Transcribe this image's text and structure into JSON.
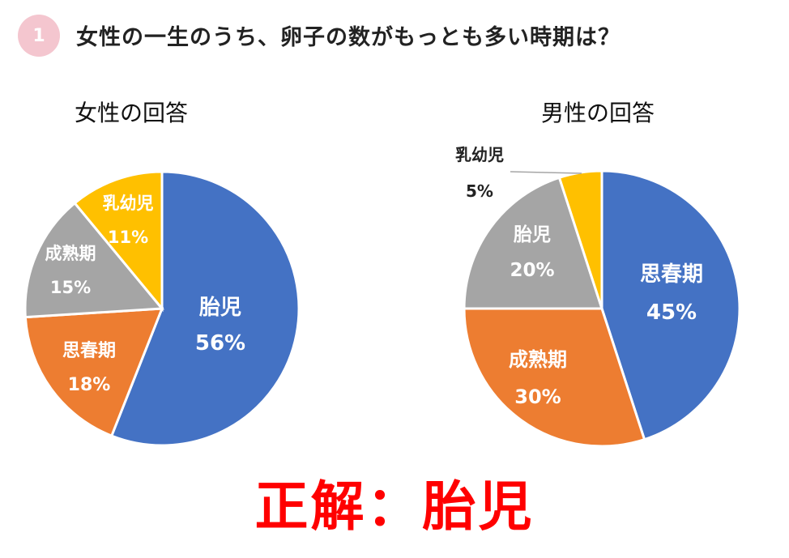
{
  "question": {
    "number": "1",
    "text": "女性の一生のうち、卵子の数がもっとも多い時期は？"
  },
  "answer": "正解：胎児",
  "chart_data": [
    {
      "type": "pie",
      "title": "女性の回答",
      "slices": [
        {
          "label": "胎児",
          "value": 56,
          "value_text": "56%",
          "color": "#4472C4"
        },
        {
          "label": "思春期",
          "value": 18,
          "value_text": "18%",
          "color": "#ED7D31"
        },
        {
          "label": "成熟期",
          "value": 15,
          "value_text": "15%",
          "color": "#A5A5A5"
        },
        {
          "label": "乳幼児",
          "value": 11,
          "value_text": "11%",
          "color": "#FFC000"
        }
      ]
    },
    {
      "type": "pie",
      "title": "男性の回答",
      "slices": [
        {
          "label": "思春期",
          "value": 45,
          "value_text": "45%",
          "color": "#4472C4"
        },
        {
          "label": "成熟期",
          "value": 30,
          "value_text": "30%",
          "color": "#ED7D31"
        },
        {
          "label": "胎児",
          "value": 20,
          "value_text": "20%",
          "color": "#A5A5A5"
        },
        {
          "label": "乳幼児",
          "value": 5,
          "value_text": "5%",
          "color": "#FFC000"
        }
      ]
    }
  ]
}
